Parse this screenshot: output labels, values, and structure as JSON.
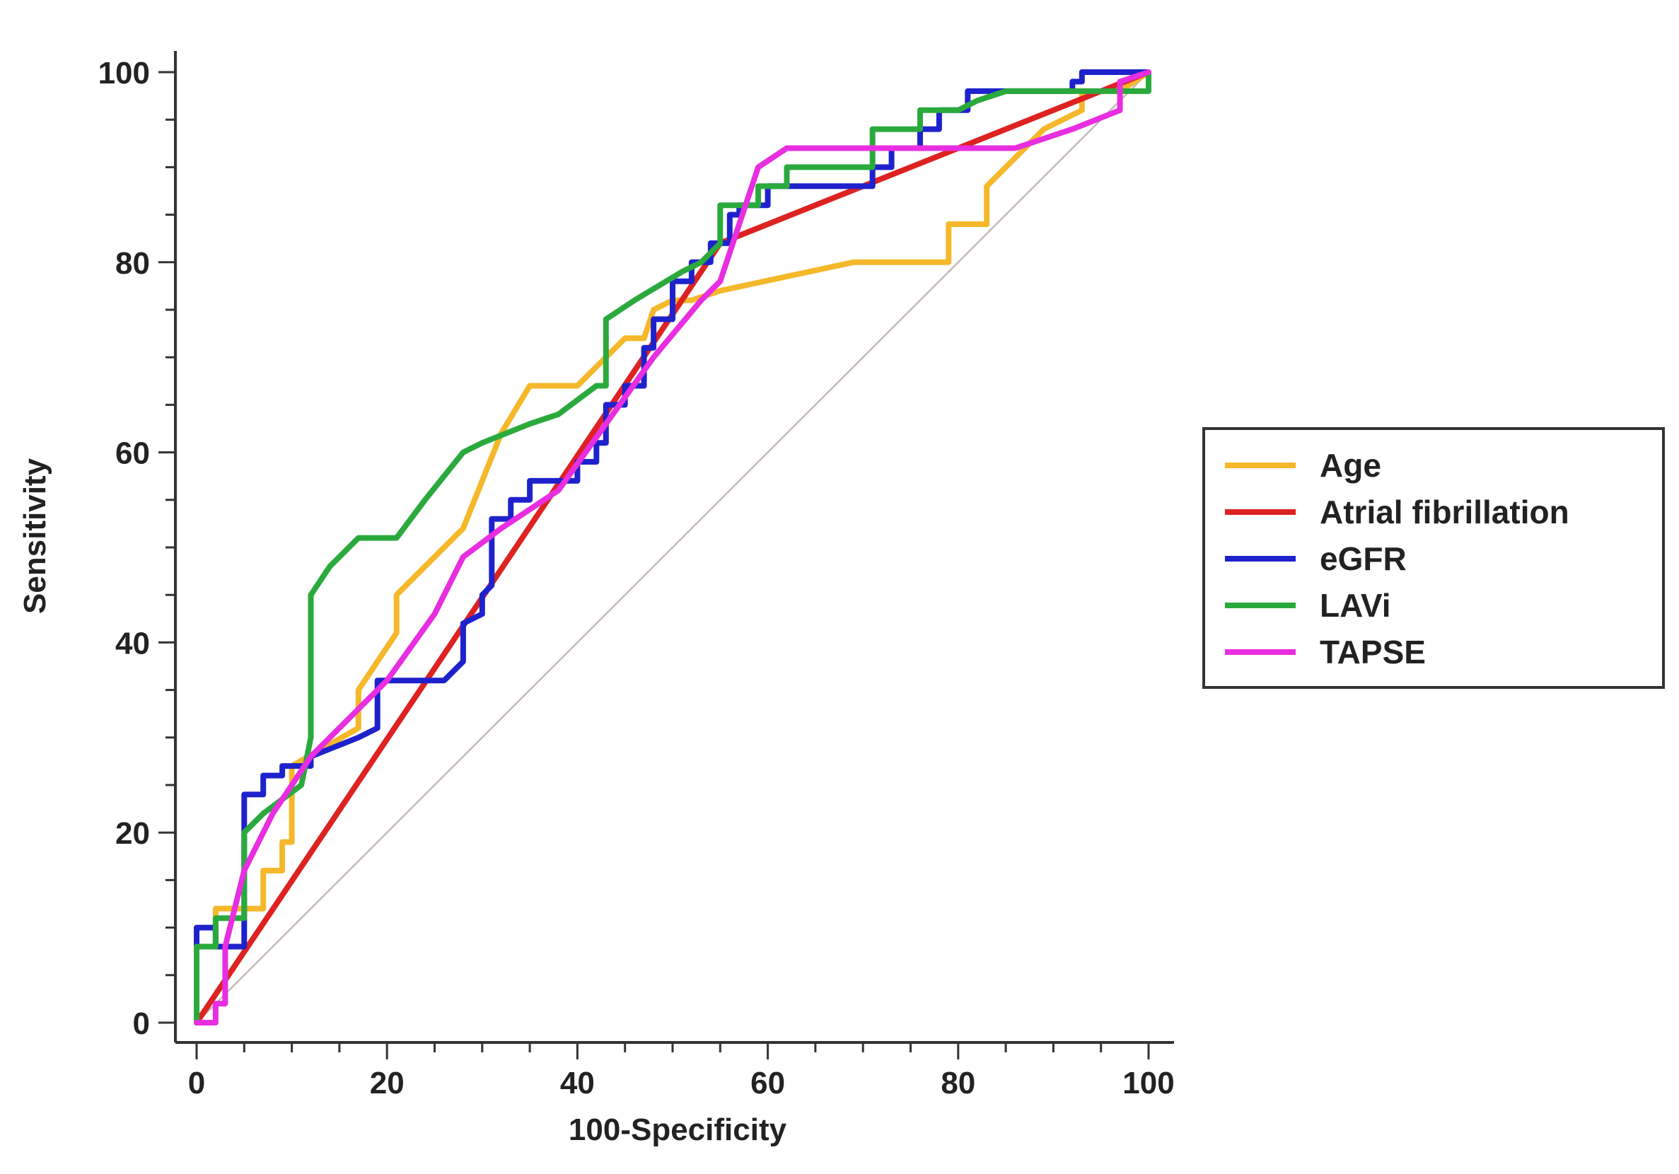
{
  "chart_data": {
    "type": "line",
    "title": "",
    "xlabel": "100-Specificity",
    "ylabel": "Sensitivity",
    "xlim": [
      0,
      100
    ],
    "ylim": [
      0,
      100
    ],
    "xticks": [
      0,
      20,
      40,
      60,
      80,
      100
    ],
    "yticks": [
      0,
      20,
      40,
      60,
      80,
      100
    ],
    "grid": false,
    "legend_position": "right",
    "reference_line": {
      "name": "diagonal",
      "color": "#c8b8b8",
      "x": [
        0,
        100
      ],
      "y": [
        0,
        100
      ]
    },
    "series": [
      {
        "name": "Age",
        "color": "#f5b82a",
        "x": [
          0,
          0,
          2,
          2,
          7,
          7,
          9,
          9,
          10,
          10,
          17,
          17,
          19,
          21,
          21,
          28,
          32,
          35,
          40,
          42,
          45,
          47,
          48,
          50,
          52,
          55,
          69,
          79,
          79,
          83,
          83,
          85,
          89,
          93,
          93,
          97,
          100
        ],
        "y": [
          0,
          8,
          8,
          12,
          12,
          16,
          16,
          19,
          19,
          27,
          31,
          35,
          38,
          41,
          45,
          52,
          62,
          67,
          67,
          69,
          72,
          72,
          75,
          76,
          76,
          77,
          80,
          80,
          84,
          84,
          88,
          90,
          94,
          96,
          98,
          98,
          100
        ]
      },
      {
        "name": "Atrial fibrillation",
        "color": "#dd2222",
        "x": [
          0,
          55,
          100
        ],
        "y": [
          0,
          82,
          100
        ]
      },
      {
        "name": "eGFR",
        "color": "#1e22cc",
        "x": [
          0,
          0,
          2,
          2,
          5,
          5,
          7,
          7,
          9,
          9,
          12,
          12,
          17,
          19,
          19,
          22,
          26,
          28,
          28,
          30,
          30,
          31,
          31,
          33,
          33,
          35,
          35,
          40,
          40,
          42,
          42,
          43,
          43,
          45,
          45,
          47,
          47,
          48,
          48,
          50,
          50,
          52,
          52,
          54,
          54,
          56,
          56,
          57,
          57,
          60,
          60,
          71,
          71,
          73,
          73,
          76,
          76,
          78,
          78,
          81,
          81,
          92,
          92,
          93,
          93,
          100,
          100
        ],
        "y": [
          0,
          10,
          10,
          8,
          8,
          24,
          24,
          26,
          26,
          27,
          27,
          28,
          30,
          31,
          36,
          36,
          36,
          38,
          42,
          43,
          45,
          46,
          53,
          53,
          55,
          55,
          57,
          57,
          59,
          59,
          61,
          61,
          65,
          65,
          67,
          67,
          71,
          71,
          74,
          74,
          78,
          78,
          80,
          80,
          82,
          82,
          85,
          85,
          86,
          86,
          88,
          88,
          90,
          90,
          92,
          92,
          94,
          94,
          96,
          96,
          98,
          98,
          99,
          99,
          100,
          100,
          99
        ]
      },
      {
        "name": "LAVi",
        "color": "#2aaa3c",
        "x": [
          0,
          0,
          2,
          2,
          5,
          5,
          7,
          11,
          12,
          12,
          14,
          17,
          18,
          21,
          24,
          28,
          30,
          35,
          38,
          42,
          43,
          43,
          46,
          51,
          53,
          53,
          55,
          55,
          59,
          59,
          62,
          62,
          67,
          71,
          71,
          74,
          76,
          76,
          80,
          80,
          82,
          85,
          86,
          90,
          94,
          96,
          100,
          100
        ],
        "y": [
          0,
          8,
          8,
          11,
          11,
          20,
          22,
          25,
          30,
          45,
          48,
          51,
          51,
          51,
          55,
          60,
          61,
          63,
          64,
          67,
          67,
          74,
          76,
          79,
          80,
          80,
          82,
          86,
          86,
          88,
          88,
          90,
          90,
          90,
          94,
          94,
          94,
          96,
          96,
          96,
          97,
          98,
          98,
          98,
          98,
          98,
          98,
          100
        ]
      },
      {
        "name": "TAPSE",
        "color": "#e82ee0",
        "x": [
          0,
          2,
          2,
          3,
          3,
          5,
          8,
          12,
          16,
          20,
          25,
          28,
          32,
          38,
          43,
          48,
          53,
          55,
          57,
          59,
          62,
          70,
          80,
          86,
          92,
          97,
          97,
          100
        ],
        "y": [
          0,
          0,
          2,
          2,
          8,
          16,
          22,
          28,
          32,
          36,
          43,
          49,
          52,
          56,
          63,
          70,
          76,
          78,
          84,
          90,
          92,
          92,
          92,
          92,
          94,
          96,
          99,
          100
        ]
      }
    ]
  }
}
